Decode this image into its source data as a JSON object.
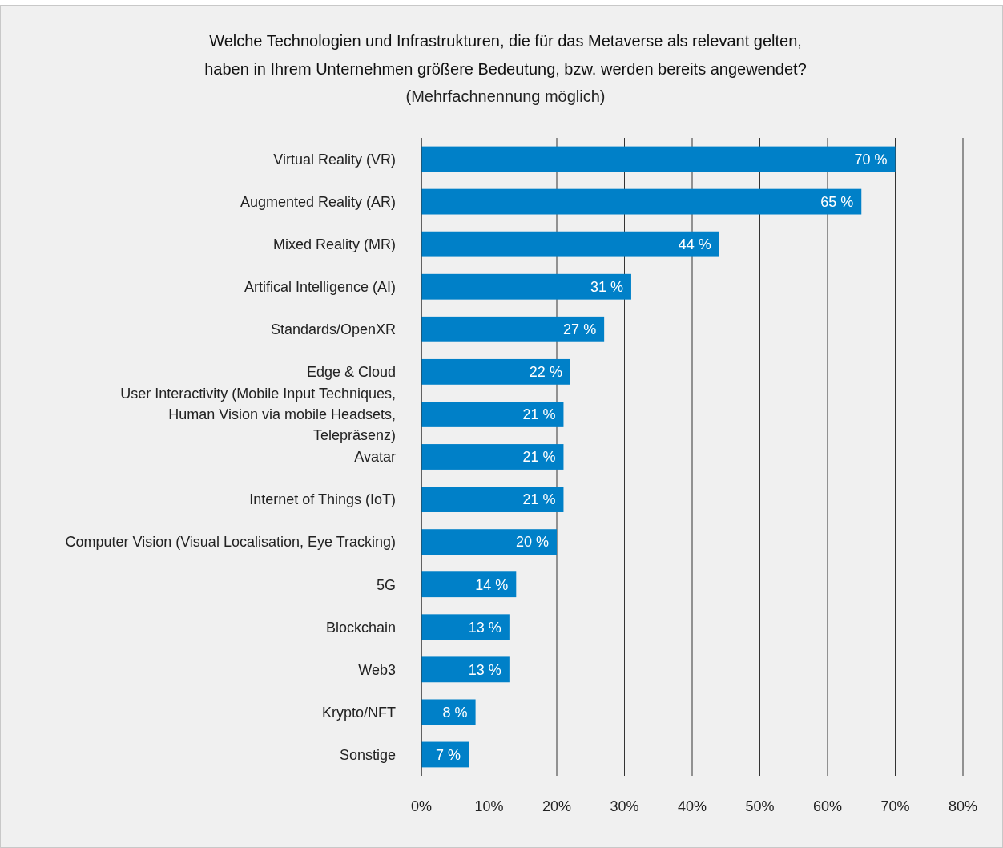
{
  "chart_data": {
    "type": "bar",
    "orientation": "horizontal",
    "title": "Welche Technologien und Infrastrukturen, die für das Metaverse als relevant gelten, haben in Ihrem Unternehmen größere Bedeutung, bzw. werden bereits angewendet?",
    "subtitle": "(Mehrfachnennung möglich)",
    "categories": [
      "Virtual Reality (VR)",
      "Augmented Reality (AR)",
      "Mixed Reality (MR)",
      "Artifical Intelligence (AI)",
      "Standards/OpenXR",
      "Edge & Cloud",
      "User Interactivity (Mobile Input Techniques, Human Vision via mobile Headsets, Telepräsenz)",
      "Avatar",
      "Internet of Things (IoT)",
      "Computer Vision (Visual Localisation, Eye Tracking)",
      "5G",
      "Blockchain",
      "Web3",
      "Krypto/NFT",
      "Sonstige"
    ],
    "values": [
      70,
      65,
      44,
      31,
      27,
      22,
      21,
      21,
      21,
      20,
      14,
      13,
      13,
      8,
      7
    ],
    "value_labels": [
      "70 %",
      "65 %",
      "44 %",
      "31 %",
      "27 %",
      "22 %",
      "21 %",
      "21 %",
      "21 %",
      "20 %",
      "14 %",
      "13 %",
      "13 %",
      "8 %",
      "7 %"
    ],
    "color": "#0080c8",
    "xlim": [
      0,
      80
    ],
    "xticks": [
      {
        "value": 0,
        "label": "0%"
      },
      {
        "value": 10,
        "label": "10%"
      },
      {
        "value": 20,
        "label": "20%"
      },
      {
        "value": 30,
        "label": "30%"
      },
      {
        "value": 40,
        "label": "40%"
      },
      {
        "value": 50,
        "label": "50%"
      },
      {
        "value": 60,
        "label": "60%"
      },
      {
        "value": 70,
        "label": "70%"
      },
      {
        "value": 80,
        "label": "80%"
      }
    ],
    "grid": "x"
  }
}
